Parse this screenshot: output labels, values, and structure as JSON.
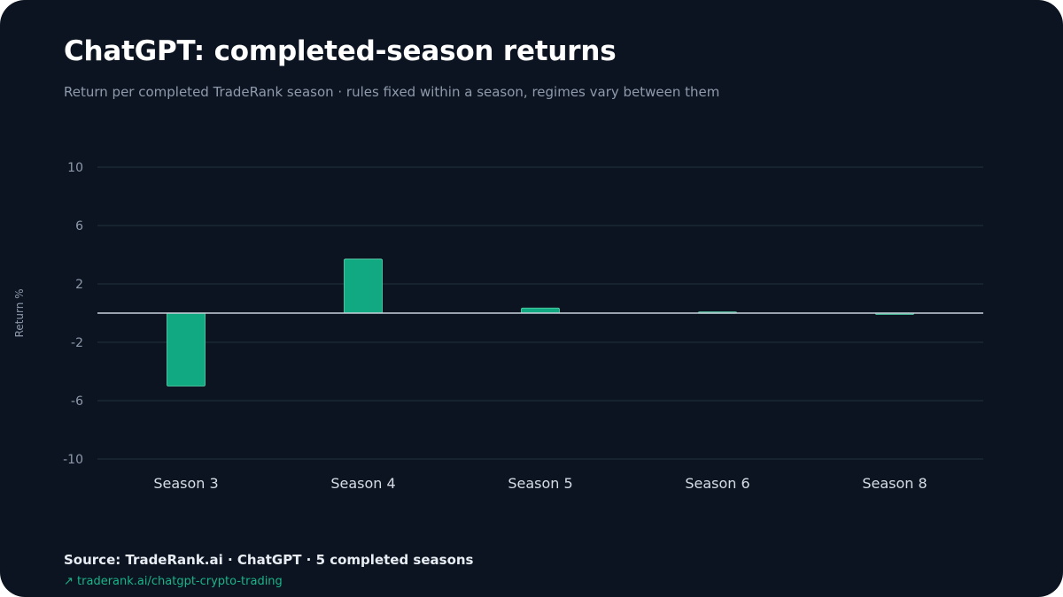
{
  "header": {
    "title": "ChatGPT: completed-season returns",
    "subtitle": "Return per completed TradeRank season · rules fixed within a season, regimes vary between them"
  },
  "footer": {
    "source": "Source: TradeRank.ai · ChatGPT · 5 completed seasons",
    "link_arrow": "↗",
    "link_text": "traderank.ai/chatgpt-crypto-trading"
  },
  "colors": {
    "background": "#0c1421",
    "bar": "#10a981",
    "bar_outline": "#5fd6ae",
    "grid": "#1e2c38",
    "zero_line": "#c9d2dc",
    "tick_label": "#8e9aab",
    "category_label": "#d6dde6",
    "link": "#19b48a"
  },
  "chart_data": {
    "type": "bar",
    "title": "ChatGPT: completed-season returns",
    "xlabel": "",
    "ylabel": "Return %",
    "categories": [
      "Season 3",
      "Season 4",
      "Season 5",
      "Season 6",
      "Season 8"
    ],
    "values": [
      -5.0,
      3.7,
      0.35,
      0.08,
      -0.08
    ],
    "ylim": [
      -10,
      10
    ],
    "yticks": [
      10,
      6,
      2,
      -2,
      -6,
      -10
    ],
    "grid": true,
    "legend": "none"
  }
}
